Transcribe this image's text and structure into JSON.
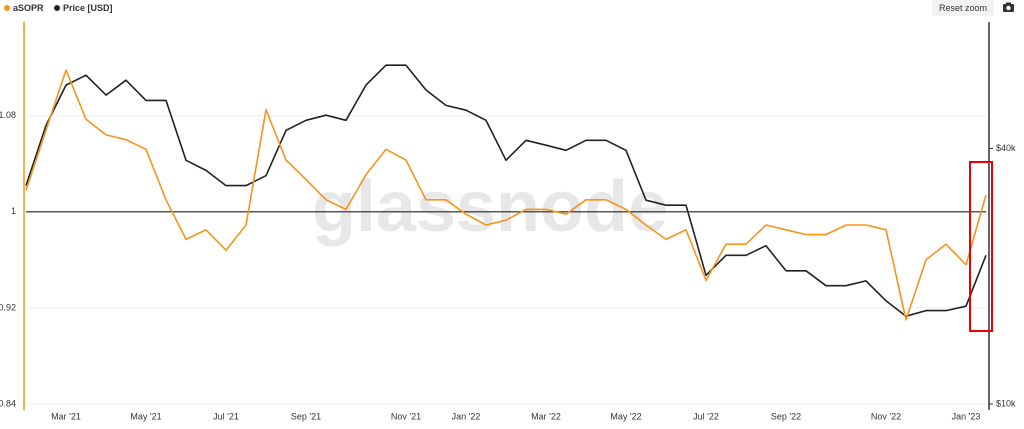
{
  "toolbar": {
    "reset_zoom": "Reset zoom"
  },
  "chart_data": {
    "type": "line",
    "watermark": "glassnode",
    "categories": [
      null,
      null,
      "Mar '21",
      null,
      null,
      null,
      "May '21",
      null,
      null,
      null,
      "Jul '21",
      null,
      null,
      null,
      "Sep '21",
      null,
      null,
      null,
      null,
      "Nov '21",
      null,
      null,
      "Jan '22",
      null,
      null,
      null,
      "Mar '22",
      null,
      null,
      null,
      "May '22",
      null,
      null,
      null,
      "Jul '22",
      null,
      null,
      null,
      "Sep '22",
      null,
      null,
      null,
      null,
      "Nov '22",
      null,
      null,
      null,
      "Jan '23",
      null
    ],
    "series": [
      {
        "name": "aSOPR",
        "color": "#f7931a",
        "axis": "y",
        "values": [
          1.018,
          1.068,
          1.118,
          1.077,
          1.064,
          1.06,
          1.052,
          1.01,
          0.977,
          0.985,
          0.968,
          0.989,
          1.085,
          1.043,
          1.027,
          1.01,
          1.002,
          1.031,
          1.052,
          1.043,
          1.01,
          1.01,
          0.998,
          0.989,
          0.993,
          1.002,
          1.002,
          0.998,
          1.01,
          1.01,
          1.002,
          0.989,
          0.977,
          0.985,
          0.943,
          0.973,
          0.973,
          0.989,
          0.985,
          0.981,
          0.981,
          0.989,
          0.989,
          0.985,
          0.91,
          0.96,
          0.973,
          0.956,
          1.014
        ]
      },
      {
        "name": "Price [USD]",
        "color": "#222222",
        "axis": "y2",
        "values": [
          32700,
          45300,
          56400,
          59500,
          53400,
          57900,
          51900,
          51900,
          37500,
          35500,
          32700,
          32700,
          34500,
          44100,
          46600,
          47900,
          46600,
          56400,
          62800,
          62800,
          54900,
          50500,
          49200,
          46600,
          37500,
          41800,
          40700,
          39600,
          41800,
          41800,
          39600,
          30200,
          29400,
          29400,
          20100,
          22400,
          22400,
          23600,
          20600,
          20600,
          19000,
          19000,
          19500,
          17500,
          16100,
          16600,
          16600,
          17000,
          22400
        ]
      }
    ],
    "ylim": [
      0.84,
      1.158
    ],
    "yticks": [
      0.84,
      0.92,
      1,
      1.08
    ],
    "y2lim": [
      10000,
      79400
    ],
    "y2scale": "log",
    "y2ticks": [
      {
        "value": 10000,
        "label": "$10k"
      },
      {
        "value": 40000,
        "label": "$40k"
      }
    ],
    "hline": 1,
    "grid": true
  }
}
